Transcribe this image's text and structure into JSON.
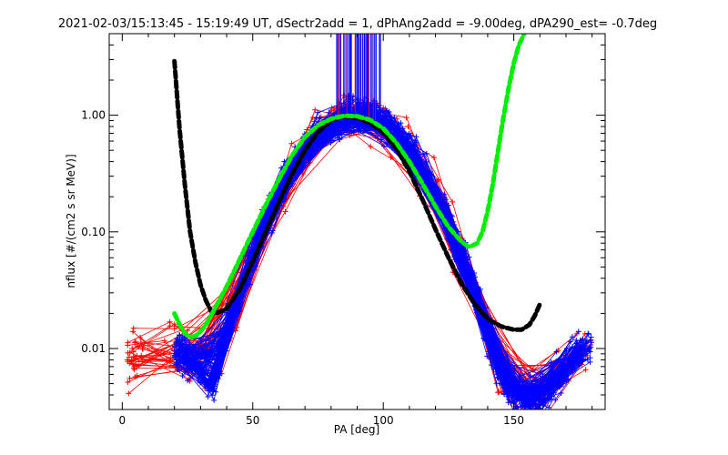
{
  "chart_data": {
    "type": "line",
    "title": "2021-02-03/15:13:45 - 15:19:49 UT, dSectr2add = 1, dPhAng2add = -9.00deg, dPA290_est=  -0.7deg",
    "xlabel": "PA [deg]",
    "ylabel": "nflux [#/(cm2 s sr MeV)]",
    "xlim": [
      -5,
      185
    ],
    "ylim": [
      0.003,
      5.0
    ],
    "yscale": "log",
    "grid": false,
    "xticks": [
      {
        "value": 0,
        "label": "0"
      },
      {
        "value": 50,
        "label": "50"
      },
      {
        "value": 100,
        "label": "100"
      },
      {
        "value": 150,
        "label": "150"
      }
    ],
    "yticks": [
      {
        "value": 0.01,
        "label": "0.01"
      },
      {
        "value": 0.1,
        "label": "0.10"
      },
      {
        "value": 1.0,
        "label": "1.00"
      }
    ],
    "colors": {
      "red_data": "#ff0000",
      "blue_data": "#0000ff",
      "black_fit": "#000000",
      "green_fit": "#00ee00"
    },
    "series": [
      {
        "style": "dashed-thick",
        "color": "#000000",
        "x": [
          20,
          22,
          24,
          26,
          28,
          30,
          32,
          34,
          36,
          40,
          45,
          50,
          55,
          60,
          65,
          70,
          75,
          80,
          85,
          90,
          95,
          100,
          105,
          110,
          115,
          120,
          125,
          130,
          135,
          140,
          145,
          150,
          153,
          156,
          158,
          160
        ],
        "y": [
          2.9,
          0.75,
          0.25,
          0.1,
          0.055,
          0.035,
          0.026,
          0.021,
          0.02,
          0.022,
          0.032,
          0.056,
          0.1,
          0.18,
          0.31,
          0.5,
          0.72,
          0.9,
          0.98,
          0.95,
          0.86,
          0.71,
          0.52,
          0.33,
          0.19,
          0.105,
          0.06,
          0.036,
          0.024,
          0.018,
          0.0155,
          0.0145,
          0.0145,
          0.016,
          0.019,
          0.024
        ]
      },
      {
        "style": "dashed-thick",
        "color": "#00ee00",
        "x": [
          20,
          22,
          24,
          26,
          28,
          30,
          32,
          35,
          40,
          45,
          50,
          55,
          60,
          65,
          70,
          75,
          80,
          85,
          90,
          95,
          100,
          105,
          110,
          115,
          120,
          125,
          130,
          133,
          136,
          138,
          140,
          142,
          144,
          146,
          148,
          150,
          152,
          154
        ],
        "y": [
          0.02,
          0.016,
          0.0135,
          0.0125,
          0.0128,
          0.014,
          0.016,
          0.021,
          0.034,
          0.058,
          0.1,
          0.17,
          0.28,
          0.45,
          0.65,
          0.82,
          0.93,
          0.99,
          0.98,
          0.91,
          0.77,
          0.58,
          0.4,
          0.26,
          0.165,
          0.11,
          0.082,
          0.074,
          0.08,
          0.1,
          0.15,
          0.26,
          0.5,
          0.95,
          1.7,
          2.8,
          4.0,
          5.0
        ]
      }
    ]
  }
}
